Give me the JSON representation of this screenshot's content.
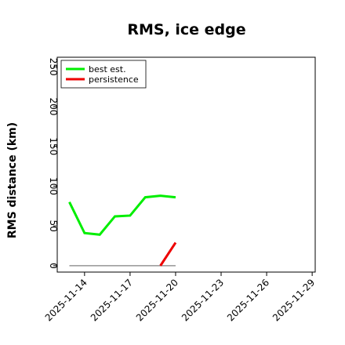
{
  "chart_data": {
    "type": "line",
    "title": "RMS, ice edge",
    "ylabel": "RMS distance (km)",
    "xlabel": "",
    "ylim": [
      -8,
      262
    ],
    "y_ticks": [
      "0",
      "50",
      "100",
      "150",
      "200",
      "250"
    ],
    "y_tick_values": [
      0,
      50,
      100,
      150,
      200,
      250
    ],
    "x_tick_labels": [
      "2025-11-14",
      "2025-11-17",
      "2025-11-20",
      "2025-11-23",
      "2025-11-26",
      "2025-11-29"
    ],
    "x_tick_values": [
      0,
      3,
      6,
      9,
      12,
      15
    ],
    "xlim": [
      -1.8,
      15.2
    ],
    "grid": false,
    "legend_position": "top-left",
    "series": [
      {
        "name": "best est.",
        "color": "#00ee00",
        "x": [
          -1,
          0,
          1,
          2,
          3,
          4,
          5,
          6
        ],
        "y": [
          80,
          41,
          39,
          62,
          63,
          86,
          88,
          86
        ]
      },
      {
        "name": "persistence",
        "color": "#ee0000",
        "x": [
          5,
          6
        ],
        "y": [
          0,
          29
        ]
      }
    ],
    "reference_line": {
      "color": "#808080",
      "x": [
        -1,
        6
      ],
      "y": [
        0,
        0
      ]
    }
  }
}
